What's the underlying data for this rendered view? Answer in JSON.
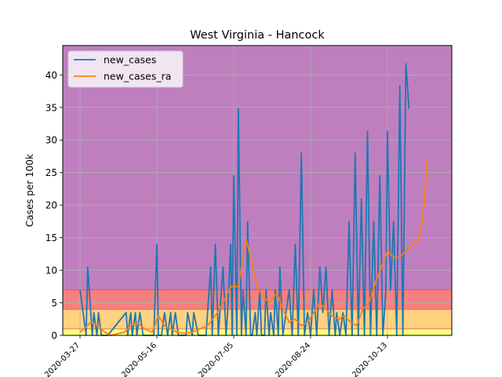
{
  "chart_data": {
    "type": "line",
    "title": "West Virginia - Hancock",
    "xlabel": "",
    "ylabel": "Cases per 100k",
    "ylim": [
      0,
      44.5
    ],
    "yticks": [
      0,
      5,
      10,
      15,
      20,
      25,
      30,
      35,
      40
    ],
    "xtick_labels": [
      "2020-03-27",
      "2020-05-16",
      "2020-07-05",
      "2020-08-24",
      "2020-10-13"
    ],
    "grid": true,
    "legend": "top-left",
    "bands": [
      {
        "from": 0,
        "to": 1,
        "color": "#ffff80"
      },
      {
        "from": 1,
        "to": 4,
        "color": "#ffd280"
      },
      {
        "from": 4,
        "to": 7,
        "color": "#f58080"
      },
      {
        "from": 7,
        "to": 44.5,
        "color": "#bf7fbf"
      }
    ],
    "series": [
      {
        "name": "new_cases",
        "color": "#1f77b4",
        "x": [
          "2020-03-27",
          "2020-03-31",
          "2020-04-01",
          "2020-04-04",
          "2020-04-05",
          "2020-04-07",
          "2020-04-08",
          "2020-04-10",
          "2020-04-14",
          "2020-04-26",
          "2020-04-27",
          "2020-04-29",
          "2020-04-30",
          "2020-05-02",
          "2020-05-03",
          "2020-05-05",
          "2020-05-07",
          "2020-05-10",
          "2020-05-12",
          "2020-05-14",
          "2020-05-16",
          "2020-05-17",
          "2020-05-19",
          "2020-05-21",
          "2020-05-23",
          "2020-05-25",
          "2020-05-26",
          "2020-05-28",
          "2020-05-30",
          "2020-06-04",
          "2020-06-05",
          "2020-06-08",
          "2020-06-09",
          "2020-06-12",
          "2020-06-13",
          "2020-06-15",
          "2020-06-17",
          "2020-06-20",
          "2020-06-21",
          "2020-06-23",
          "2020-06-25",
          "2020-06-28",
          "2020-06-30",
          "2020-07-01",
          "2020-07-03",
          "2020-07-04",
          "2020-07-05",
          "2020-07-07",
          "2020-07-08",
          "2020-07-10",
          "2020-07-11",
          "2020-07-13",
          "2020-07-14",
          "2020-07-16",
          "2020-07-17",
          "2020-07-19",
          "2020-07-20",
          "2020-07-22",
          "2020-07-23",
          "2020-07-25",
          "2020-07-26",
          "2020-07-28",
          "2020-07-29",
          "2020-07-31",
          "2020-08-01",
          "2020-08-03",
          "2020-08-04",
          "2020-08-06",
          "2020-08-08",
          "2020-08-10",
          "2020-08-12",
          "2020-08-14",
          "2020-08-16",
          "2020-08-18",
          "2020-08-20",
          "2020-08-22",
          "2020-08-24",
          "2020-08-26",
          "2020-08-28",
          "2020-08-30",
          "2020-09-01",
          "2020-09-03",
          "2020-09-05",
          "2020-09-07",
          "2020-09-09",
          "2020-09-10",
          "2020-09-12",
          "2020-09-14",
          "2020-09-16",
          "2020-09-18",
          "2020-09-20",
          "2020-09-22",
          "2020-09-24",
          "2020-09-26",
          "2020-09-28",
          "2020-09-30",
          "2020-10-02",
          "2020-10-04",
          "2020-10-06",
          "2020-10-08",
          "2020-10-10",
          "2020-10-12",
          "2020-10-13",
          "2020-10-15",
          "2020-10-17",
          "2020-10-19",
          "2020-10-21",
          "2020-10-23",
          "2020-10-25",
          "2020-10-27",
          "2020-10-29",
          "2020-10-31",
          "2020-11-02",
          "2020-11-04",
          "2020-11-06",
          "2020-11-07",
          "2020-11-08",
          "2020-11-09"
        ],
        "values": [
          7,
          0,
          10.5,
          0,
          3.5,
          0,
          3.5,
          0,
          0,
          3.5,
          0,
          3.5,
          0,
          3.5,
          0,
          3.5,
          0,
          0,
          0,
          0,
          14,
          0,
          0,
          3.5,
          0,
          3.5,
          0,
          3.5,
          0,
          0,
          3.5,
          0,
          3.5,
          0,
          0,
          0,
          0,
          10.5,
          0,
          14,
          0,
          10.5,
          0,
          3.5,
          14,
          0,
          24.5,
          0,
          34.8,
          0,
          7,
          0,
          17.5,
          0,
          0,
          3.5,
          0,
          7,
          0,
          0,
          7,
          0,
          3.5,
          0,
          7,
          0,
          10.5,
          0,
          3.5,
          7,
          0,
          14,
          0,
          28,
          0,
          3.5,
          0,
          7,
          0,
          10.5,
          3.5,
          10.5,
          0,
          7,
          0,
          3.5,
          0,
          3.5,
          0,
          17.5,
          0,
          28,
          0,
          21,
          0,
          31.3,
          0,
          17.5,
          0,
          24.5,
          0,
          7,
          31.3,
          7,
          17.5,
          0,
          38.3,
          0,
          41.7,
          34.8,
          0,
          0,
          0,
          0,
          0,
          0,
          0,
          0
        ],
        "truncate": 110
      },
      {
        "name": "new_cases_ra",
        "color": "#ff7f0e",
        "x": [
          "2020-03-27",
          "2020-04-03",
          "2020-04-08",
          "2020-04-12",
          "2020-04-16",
          "2020-04-25",
          "2020-04-29",
          "2020-05-03",
          "2020-05-08",
          "2020-05-13",
          "2020-05-17",
          "2020-05-21",
          "2020-05-25",
          "2020-05-29",
          "2020-06-03",
          "2020-06-08",
          "2020-06-13",
          "2020-06-18",
          "2020-06-23",
          "2020-06-28",
          "2020-07-03",
          "2020-07-08",
          "2020-07-13",
          "2020-07-16",
          "2020-07-20",
          "2020-07-24",
          "2020-07-28",
          "2020-08-02",
          "2020-08-06",
          "2020-08-10",
          "2020-08-14",
          "2020-08-18",
          "2020-08-22",
          "2020-08-26",
          "2020-08-30",
          "2020-09-03",
          "2020-09-07",
          "2020-09-11",
          "2020-09-15",
          "2020-09-19",
          "2020-09-23",
          "2020-09-27",
          "2020-10-01",
          "2020-10-05",
          "2020-10-09",
          "2020-10-13",
          "2020-10-17",
          "2020-10-21",
          "2020-10-25",
          "2020-10-29",
          "2020-11-02",
          "2020-11-05",
          "2020-11-08"
        ],
        "values": [
          0.5,
          2,
          1.5,
          0.5,
          0,
          0.5,
          1.5,
          2,
          1,
          0.5,
          3,
          1.5,
          1,
          0.5,
          0.3,
          0.5,
          1,
          1.5,
          3,
          5,
          7.5,
          7.5,
          14.8,
          12,
          7.5,
          6,
          5,
          6.5,
          4,
          2,
          2.5,
          1.5,
          2,
          3.5,
          5,
          4,
          3,
          2.5,
          3,
          2,
          1.5,
          4,
          5,
          8,
          10.5,
          13,
          12,
          12,
          13,
          14,
          14.5,
          18,
          27
        ],
        "truncate": 53
      }
    ]
  }
}
